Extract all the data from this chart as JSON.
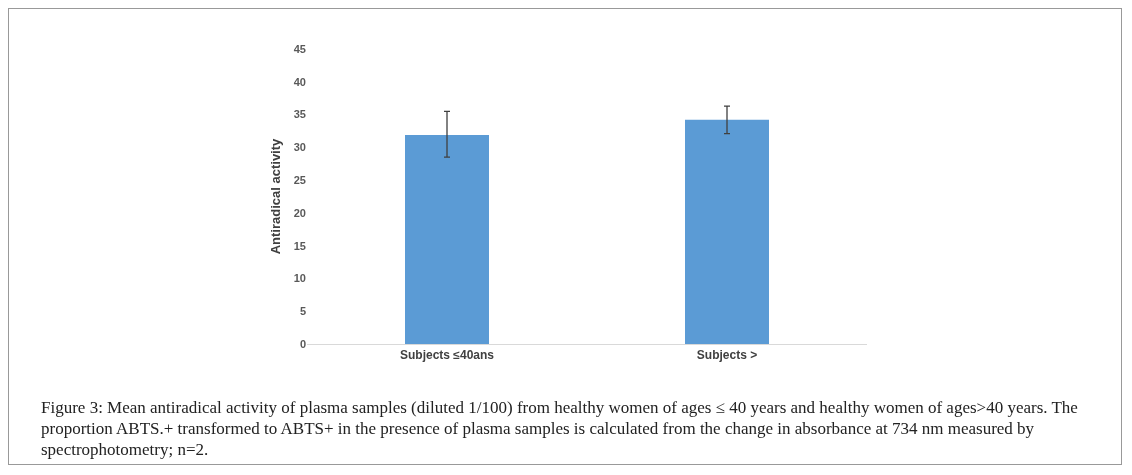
{
  "chart_data": {
    "type": "bar",
    "ylabel": "Antiradical activity",
    "categories": [
      "Subjects ≤40ans",
      "Subjects >"
    ],
    "values": [
      31.9,
      34.2
    ],
    "errors": [
      [
        28.5,
        35.5
      ],
      [
        32.1,
        36.3
      ]
    ],
    "color": "#5b9bd5",
    "ylim": [
      0,
      45
    ],
    "yticks": [
      0,
      5,
      10,
      15,
      20,
      25,
      30,
      35,
      40,
      45
    ],
    "grid": false,
    "legend": false,
    "annotations": [
      "Figure 3: Mean antiradical activity of plasma samples (diluted 1/100) from healthy women of ages ≤ 40 years and healthy women of ages>40 years. The proportion ABTS.+ transformed to ABTS+ in the presence of plasma samples is calculated from the change in absorbance at 734 nm measured by spectrophotometry; n=2."
    ]
  }
}
